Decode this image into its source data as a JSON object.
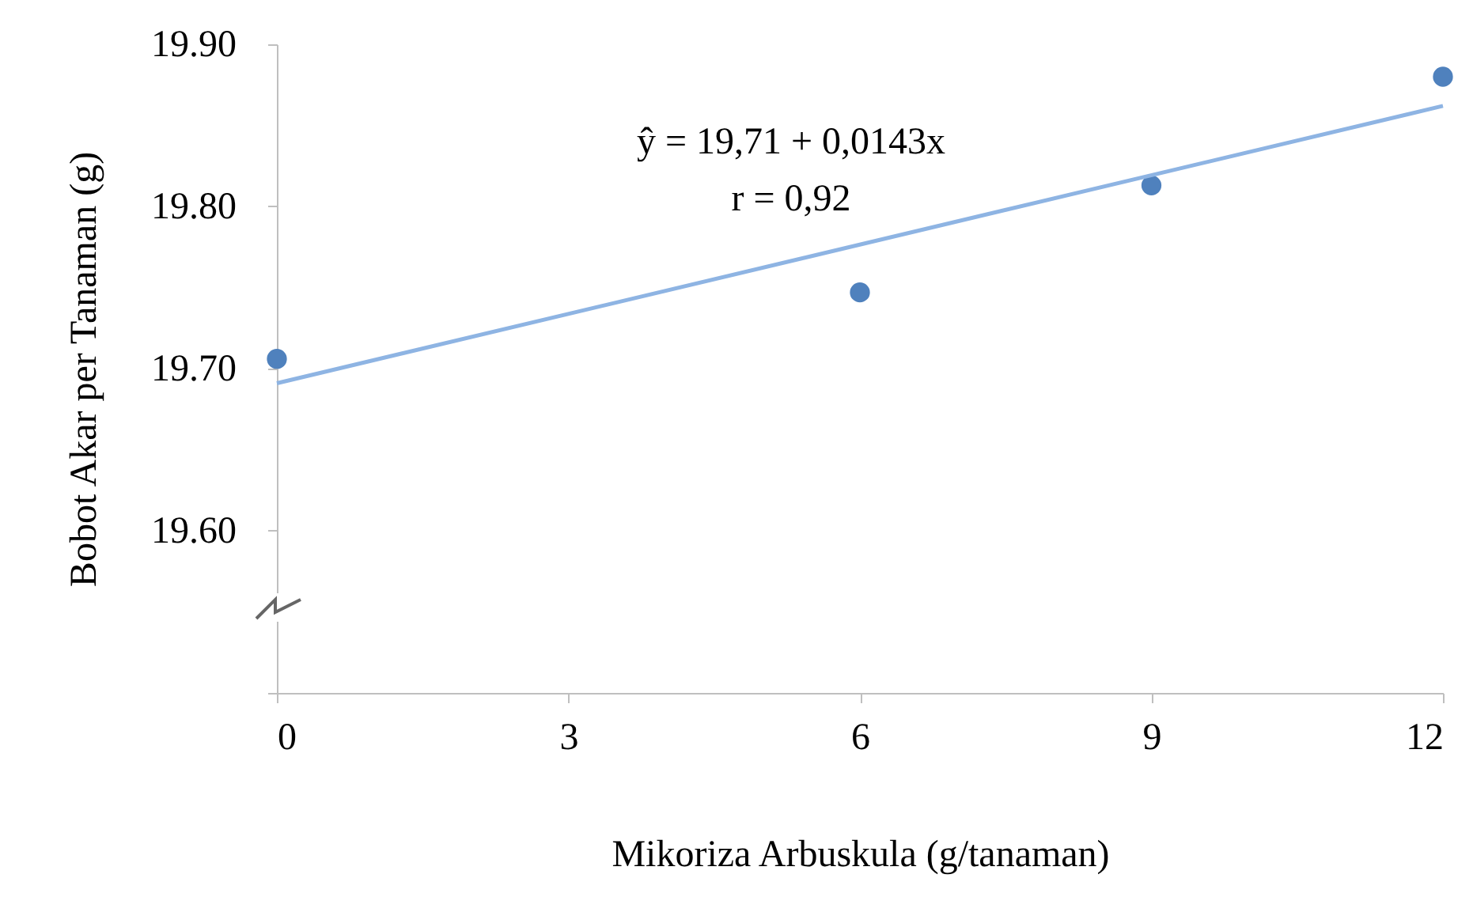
{
  "chart_data": {
    "type": "scatter",
    "xlabel": "Mikoriza Arbuskula (g/tanaman)",
    "ylabel": "Bobot Akar per Tanaman (g)",
    "x": [
      0,
      6,
      9,
      12
    ],
    "series": [
      {
        "color": "#4f81bd",
        "marker": "circle",
        "values": [
          19.706,
          19.747,
          19.813,
          19.88
        ]
      },
      {
        "type": "line",
        "color": "#8eb4e3",
        "marker": "none",
        "x": [
          0,
          12
        ],
        "values": [
          19.691,
          19.862
        ]
      }
    ],
    "xlim": [
      0,
      12
    ],
    "xticks": [
      0,
      3,
      6,
      9,
      12
    ],
    "ylim": [
      19.5,
      19.9
    ],
    "yticks": [
      {
        "value": 19.5,
        "label": null
      },
      {
        "value": 19.6,
        "label": "19.60"
      },
      {
        "value": 19.7,
        "label": "19.70"
      },
      {
        "value": 19.8,
        "label": "19.80"
      },
      {
        "value": 19.9,
        "label": "19.90"
      }
    ],
    "grid": false,
    "annotations": [
      "ŷ =  19,71 + 0,0143x",
      "r = 0,92"
    ]
  }
}
